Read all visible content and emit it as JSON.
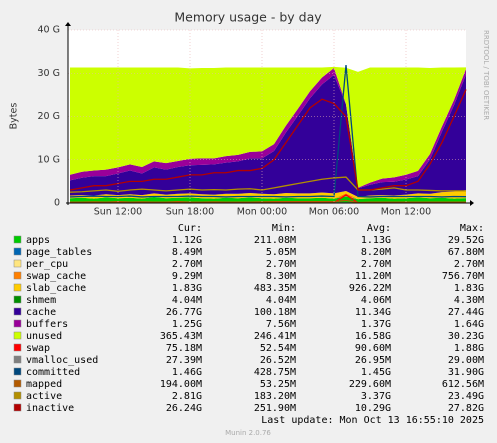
{
  "chart_data": {
    "type": "area",
    "title": "Memory usage - by day",
    "ylabel": "Bytes",
    "side_text": "RRDTOOL / TOBI OETIKER",
    "last_update": "Last update: Mon Oct 13 16:55:10 2025",
    "footer": "Munin 2.0.76",
    "stats_header": [
      "Cur:",
      "Min:",
      "Avg:",
      "Max:"
    ],
    "categories": [
      null,
      null,
      null,
      null,
      "Sun 12:00",
      null,
      null,
      null,
      null,
      null,
      "Sun 18:00",
      null,
      null,
      null,
      null,
      null,
      "Mon 00:00",
      null,
      null,
      null,
      null,
      null,
      "Mon 06:00",
      null,
      null,
      null,
      null,
      null,
      "Mon 12:00",
      null,
      null,
      null,
      null,
      null
    ],
    "ylim": [
      0,
      40
    ],
    "yticks": [
      0,
      {
        "value": 10,
        "label": "10 G"
      },
      {
        "value": 20,
        "label": "20 G"
      },
      {
        "value": 30,
        "label": "30 G"
      },
      {
        "value": 40,
        "label": "40 G"
      }
    ],
    "grid": true,
    "series": [
      {
        "name": "apps",
        "style": "area",
        "color": "#00cc00",
        "stats": [
          "1.12G",
          "211.08M",
          "1.13G",
          "29.52G"
        ],
        "values": [
          1.1,
          1.2,
          1.0,
          1.3,
          1.1,
          1.2,
          1.0,
          1.4,
          1.1,
          1.2,
          1.3,
          1.1,
          1.0,
          1.2,
          1.1,
          1.3,
          1.1,
          1.0,
          1.2,
          1.1,
          1.1,
          1.2,
          1.0,
          1.5,
          0.9,
          1.1,
          1.2,
          1.0,
          1.1,
          1.3,
          1.1,
          1.2,
          1.0,
          1.12
        ]
      },
      {
        "name": "page_tables",
        "style": "area",
        "color": "#0066b3",
        "stats": [
          "8.49M",
          "5.05M",
          "8.20M",
          "67.80M"
        ],
        "values": [
          0.008,
          0.008,
          0.008,
          0.008,
          0.008,
          0.008,
          0.008,
          0.008,
          0.008,
          0.008,
          0.008,
          0.008,
          0.008,
          0.008,
          0.008,
          0.008,
          0.008,
          0.008,
          0.008,
          0.008,
          0.008,
          0.008,
          0.008,
          0.06,
          0.008,
          0.008,
          0.008,
          0.008,
          0.008,
          0.008,
          0.008,
          0.008,
          0.008,
          0.0085
        ]
      },
      {
        "name": "per_cpu",
        "style": "area",
        "color": "#ffe680",
        "stats": [
          "2.70M",
          "2.70M",
          "2.70M",
          "2.70M"
        ],
        "values": [
          0.0027,
          0.0027,
          0.0027,
          0.0027,
          0.0027,
          0.0027,
          0.0027,
          0.0027,
          0.0027,
          0.0027,
          0.0027,
          0.0027,
          0.0027,
          0.0027,
          0.0027,
          0.0027,
          0.0027,
          0.0027,
          0.0027,
          0.0027,
          0.0027,
          0.0027,
          0.0027,
          0.0027,
          0.0027,
          0.0027,
          0.0027,
          0.0027,
          0.0027,
          0.0027,
          0.0027,
          0.0027,
          0.0027,
          0.0027
        ]
      },
      {
        "name": "swap_cache",
        "style": "area",
        "color": "#ff8000",
        "stats": [
          "9.29M",
          "8.30M",
          "11.20M",
          "756.70M"
        ],
        "values": [
          0.01,
          0.01,
          0.01,
          0.01,
          0.01,
          0.01,
          0.01,
          0.01,
          0.01,
          0.01,
          0.01,
          0.01,
          0.01,
          0.01,
          0.01,
          0.01,
          0.01,
          0.01,
          0.01,
          0.01,
          0.01,
          0.01,
          0.01,
          0.7,
          0.01,
          0.01,
          0.01,
          0.01,
          0.01,
          0.01,
          0.01,
          0.01,
          0.01,
          0.0093
        ]
      },
      {
        "name": "slab_cache",
        "style": "area",
        "color": "#ffcc00",
        "stats": [
          "1.83G",
          "483.35M",
          "926.22M",
          "1.83G"
        ],
        "values": [
          0.6,
          0.6,
          0.7,
          0.7,
          0.7,
          0.8,
          0.8,
          0.8,
          0.8,
          0.9,
          0.9,
          0.9,
          0.9,
          0.9,
          1.0,
          1.0,
          1.0,
          1.0,
          1.1,
          1.1,
          1.1,
          1.2,
          1.2,
          0.5,
          0.5,
          0.6,
          0.6,
          0.7,
          0.8,
          0.9,
          1.0,
          1.3,
          1.6,
          1.83
        ]
      },
      {
        "name": "shmem",
        "style": "area",
        "color": "#008f00",
        "stats": [
          "4.04M",
          "4.04M",
          "4.06M",
          "4.30M"
        ],
        "values": [
          0.004,
          0.004,
          0.004,
          0.004,
          0.004,
          0.004,
          0.004,
          0.004,
          0.004,
          0.004,
          0.004,
          0.004,
          0.004,
          0.004,
          0.004,
          0.004,
          0.004,
          0.004,
          0.004,
          0.004,
          0.004,
          0.004,
          0.004,
          0.004,
          0.004,
          0.004,
          0.004,
          0.004,
          0.004,
          0.004,
          0.004,
          0.004,
          0.004,
          0.004
        ]
      },
      {
        "name": "cache",
        "style": "area",
        "color": "#330099",
        "stats": [
          "26.77G",
          "100.18M",
          "11.34G",
          "27.44G"
        ],
        "values": [
          3.5,
          4,
          4.5,
          4.2,
          5,
          5.5,
          5,
          6,
          5.8,
          6.2,
          6.5,
          6.8,
          7,
          7.2,
          7.5,
          8,
          8.2,
          10,
          14,
          18,
          22,
          25,
          27.4,
          20,
          2,
          2.5,
          3,
          3.2,
          3.5,
          4,
          8,
          14,
          20,
          26.77
        ]
      },
      {
        "name": "buffers",
        "style": "area",
        "color": "#990099",
        "stats": [
          "1.25G",
          "7.56M",
          "1.37G",
          "1.64G"
        ],
        "values": [
          1.3,
          1.4,
          1.3,
          1.5,
          1.4,
          1.4,
          1.5,
          1.4,
          1.5,
          1.4,
          1.5,
          1.5,
          1.4,
          1.5,
          1.5,
          1.5,
          1.6,
          1.6,
          1.6,
          1.6,
          1.6,
          1.6,
          1.6,
          0.1,
          0.1,
          0.5,
          0.8,
          1.0,
          1.1,
          1.2,
          1.2,
          1.2,
          1.2,
          1.25
        ]
      },
      {
        "name": "unused",
        "style": "area",
        "color": "#ccff00",
        "stats": [
          "365.43M",
          "246.41M",
          "16.58G",
          "30.23G"
        ],
        "values": [
          24.8,
          24.1,
          23.8,
          23.6,
          23.1,
          22.4,
          23.0,
          21.7,
          22.1,
          21.6,
          20.9,
          20.9,
          20.9,
          20.5,
          20.2,
          19.5,
          19.4,
          17.7,
          13.4,
          9.5,
          5.5,
          2.3,
          0.25,
          8.4,
          26.8,
          26.6,
          25.7,
          25.4,
          24.8,
          23.9,
          19.9,
          13.6,
          7.5,
          0.365
        ]
      },
      {
        "name": "swap",
        "style": "line",
        "color": "#ff0000",
        "stats": [
          "75.18M",
          "52.54M",
          "90.60M",
          "1.88G"
        ],
        "values": [
          0.075,
          0.075,
          0.075,
          0.075,
          0.075,
          0.075,
          0.075,
          0.075,
          0.075,
          0.075,
          0.075,
          0.075,
          0.075,
          0.075,
          0.075,
          0.075,
          0.075,
          0.075,
          0.075,
          0.075,
          0.075,
          0.075,
          0.075,
          1.88,
          0.06,
          0.06,
          0.07,
          0.07,
          0.075,
          0.075,
          0.075,
          0.075,
          0.075,
          0.075
        ]
      },
      {
        "name": "vmalloc_used",
        "style": "line",
        "color": "#808080",
        "stats": [
          "27.39M",
          "26.52M",
          "26.95M",
          "29.00M"
        ],
        "values": [
          0.027,
          0.027,
          0.027,
          0.027,
          0.027,
          0.027,
          0.027,
          0.027,
          0.027,
          0.027,
          0.027,
          0.027,
          0.027,
          0.027,
          0.027,
          0.027,
          0.027,
          0.027,
          0.027,
          0.027,
          0.027,
          0.027,
          0.027,
          0.029,
          0.027,
          0.027,
          0.027,
          0.027,
          0.027,
          0.027,
          0.027,
          0.027,
          0.027,
          0.027
        ]
      },
      {
        "name": "committed",
        "style": "line",
        "color": "#00487d",
        "stats": [
          "1.46G",
          "428.75M",
          "1.45G",
          "31.90G"
        ],
        "values": [
          1.4,
          1.5,
          1.6,
          1.5,
          1.5,
          1.6,
          1.4,
          1.5,
          1.5,
          1.5,
          1.6,
          1.5,
          1.5,
          1.4,
          1.5,
          1.5,
          1.5,
          1.5,
          1.4,
          1.5,
          1.5,
          1.6,
          1.5,
          31.9,
          1.5,
          1.4,
          1.5,
          1.5,
          1.5,
          1.5,
          1.5,
          1.4,
          1.5,
          1.46
        ]
      },
      {
        "name": "mapped",
        "style": "line",
        "color": "#b35a00",
        "stats": [
          "194.00M",
          "53.25M",
          "229.60M",
          "612.56M"
        ],
        "values": [
          0.2,
          0.2,
          0.25,
          0.2,
          0.3,
          0.2,
          0.25,
          0.2,
          0.2,
          0.3,
          0.2,
          0.2,
          0.25,
          0.2,
          0.2,
          0.2,
          0.25,
          0.3,
          0.3,
          0.3,
          0.3,
          0.3,
          0.3,
          0.6,
          0.1,
          0.2,
          0.2,
          0.2,
          0.2,
          0.2,
          0.2,
          0.2,
          0.2,
          0.194
        ]
      },
      {
        "name": "active",
        "style": "line",
        "color": "#b38f00",
        "stats": [
          "2.81G",
          "183.20M",
          "3.37G",
          "23.49G"
        ],
        "values": [
          2.5,
          2.6,
          2.8,
          3,
          2.7,
          3,
          3.2,
          3,
          2.8,
          3,
          3.2,
          3,
          3.1,
          3,
          3.2,
          3.3,
          3,
          3.5,
          4,
          4.5,
          5,
          5.5,
          5.8,
          6,
          3,
          3,
          3.2,
          3.5,
          3,
          3,
          2.9,
          2.8,
          2.8,
          2.81
        ]
      },
      {
        "name": "inactive",
        "style": "line",
        "color": "#b30000",
        "stats": [
          "26.24G",
          "251.90M",
          "10.29G",
          "27.82G"
        ],
        "values": [
          3,
          3.5,
          4,
          4,
          4.5,
          5,
          5,
          5.5,
          5.5,
          6,
          6.5,
          6.5,
          7,
          7,
          7.5,
          7.5,
          8,
          10,
          14,
          18,
          22,
          24,
          23,
          20,
          3,
          3,
          3.5,
          4,
          4,
          5,
          9,
          14,
          20,
          26.24
        ]
      }
    ]
  }
}
